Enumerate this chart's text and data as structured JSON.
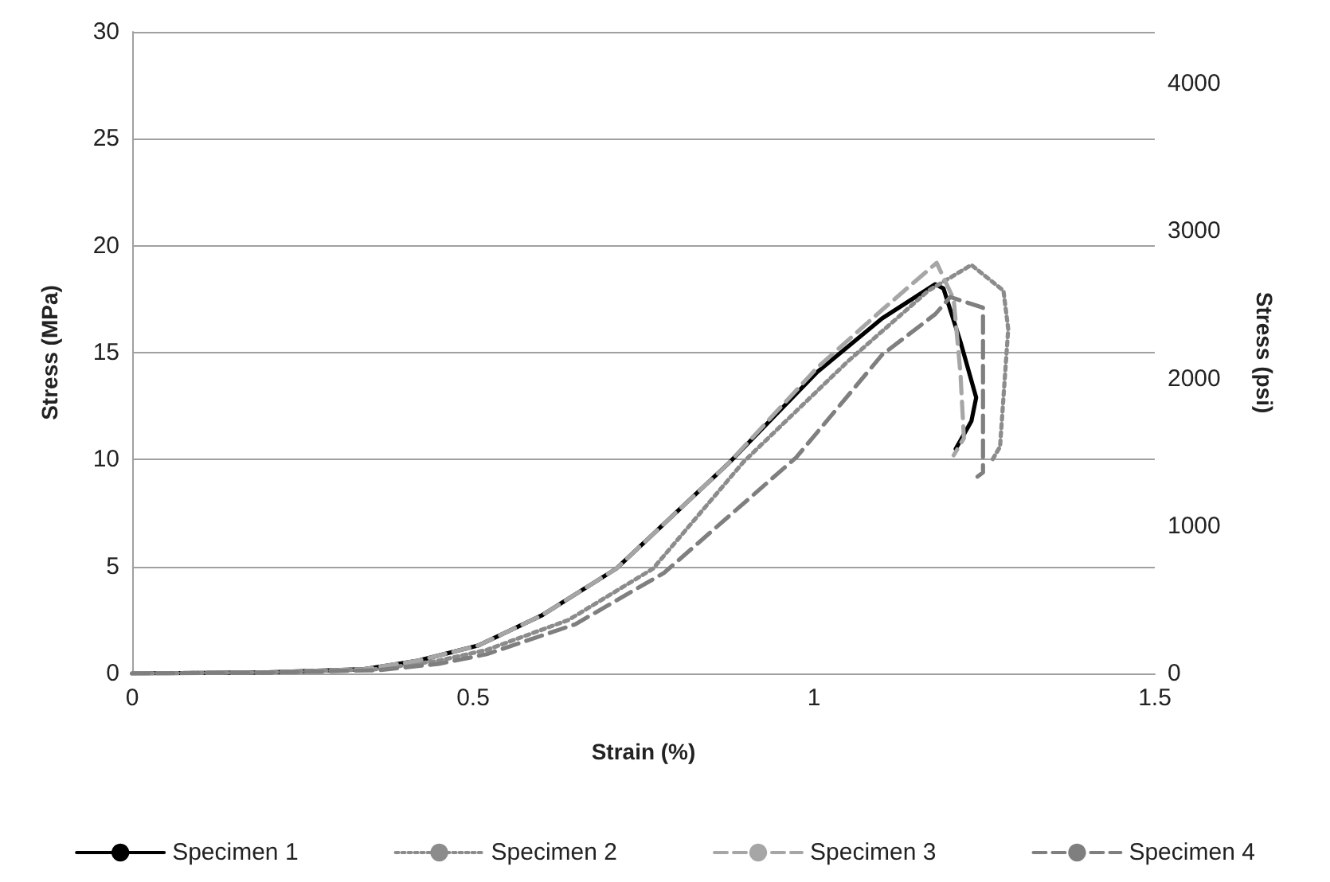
{
  "chart_data": {
    "type": "line",
    "xlabel": "Strain (%)",
    "ylabel": "Stress (MPa)",
    "y2label": "Stress (psi)",
    "xlim": [
      0,
      1.5
    ],
    "xticks": [
      0,
      0.5,
      1,
      1.5
    ],
    "ylim": [
      0,
      30
    ],
    "yticks": [
      0,
      5,
      10,
      15,
      20,
      25,
      30
    ],
    "y2lim": [
      0,
      4351
    ],
    "y2ticks": [
      0,
      1000,
      2000,
      3000,
      4000
    ],
    "grid": "y",
    "legend": "bottom",
    "marker": "none",
    "series": [
      {
        "name": "Specimen 1",
        "color": "#000000",
        "line_style": "solid",
        "x": [
          0,
          0.2,
          0.34,
          0.42,
          0.507,
          0.6,
          0.71,
          0.874,
          1.005,
          1.1,
          1.178,
          1.19,
          1.215,
          1.238,
          1.231,
          1.208
        ],
        "values": [
          0,
          0.05,
          0.2,
          0.6,
          1.3,
          2.7,
          4.9,
          9.8,
          14.1,
          16.6,
          18.2,
          18,
          15.5,
          12.9,
          11.8,
          10.5
        ]
      },
      {
        "name": "Specimen 2",
        "color": "#8c8c8c",
        "line_style": "dotted",
        "x": [
          0,
          0.2,
          0.36,
          0.45,
          0.52,
          0.64,
          0.764,
          0.897,
          1.05,
          1.168,
          1.231,
          1.278,
          1.285,
          1.278,
          1.273,
          1.26
        ],
        "values": [
          0,
          0.05,
          0.2,
          0.6,
          1.1,
          2.5,
          4.9,
          9.9,
          14.6,
          17.9,
          19.1,
          17.9,
          16.1,
          12.9,
          10.6,
          9.9
        ]
      },
      {
        "name": "Specimen 3",
        "color": "#a6a6a6",
        "line_style": "dashed",
        "x": [
          0,
          0.2,
          0.34,
          0.42,
          0.507,
          0.6,
          0.71,
          0.874,
          1.005,
          1.1,
          1.18,
          1.205,
          1.215,
          1.22,
          1.205
        ],
        "values": [
          0,
          0.05,
          0.2,
          0.6,
          1.3,
          2.7,
          4.9,
          9.8,
          14.3,
          17,
          19.2,
          17.5,
          14,
          11,
          10.2
        ]
      },
      {
        "name": "Specimen 4",
        "color": "#7f7f7f",
        "line_style": "dashed",
        "x": [
          0,
          0.2,
          0.36,
          0.45,
          0.52,
          0.65,
          0.78,
          0.974,
          1.1,
          1.178,
          1.2,
          1.248,
          1.248,
          1.24
        ],
        "values": [
          0,
          0.05,
          0.15,
          0.45,
          0.9,
          2.3,
          4.7,
          10.1,
          14.9,
          16.8,
          17.6,
          17.1,
          9.4,
          9.2
        ]
      }
    ]
  }
}
